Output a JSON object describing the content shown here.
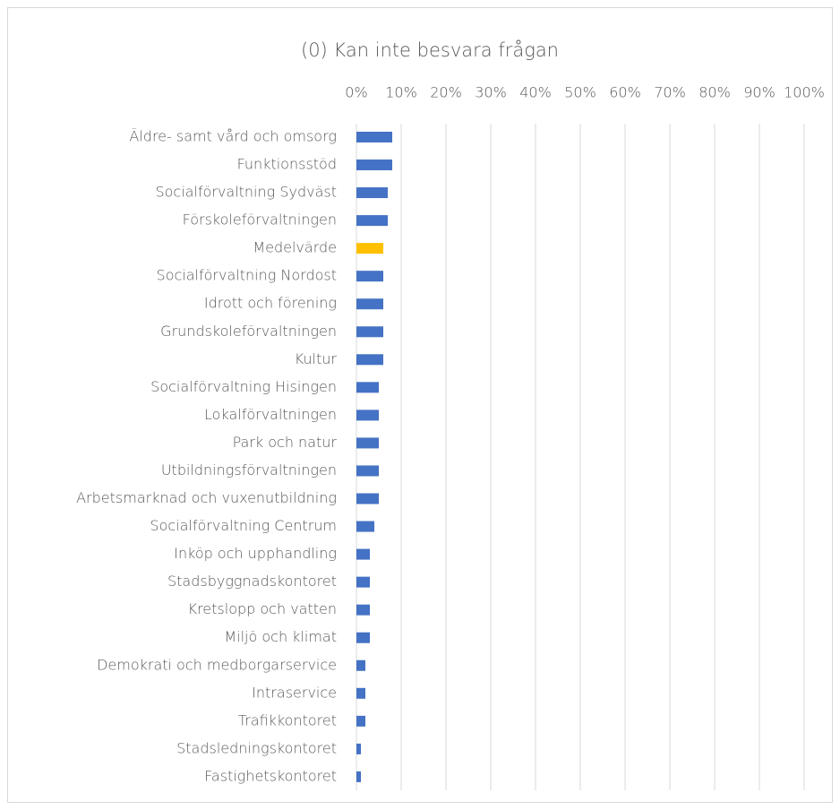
{
  "chart_data": {
    "type": "barh",
    "title": "(0) Kan inte besvara frågan",
    "categories": [
      "Äldre- samt vård och omsorg",
      "Funktionsstöd",
      "Socialförvaltning Sydväst",
      "Förskoleförvaltningen",
      "Medelvärde",
      "Socialförvaltning Nordost",
      "Idrott och förening",
      "Grundskoleförvaltningen",
      "Kultur",
      "Socialförvaltning Hisingen",
      "Lokalförvaltningen",
      "Park och natur",
      "Utbildningsförvaltningen",
      "Arbetsmarknad och vuxenutbildning",
      "Socialförvaltning Centrum",
      "Inköp och upphandling",
      "Stadsbyggnadskontoret",
      "Kretslopp och vatten",
      "Miljö och klimat",
      "Demokrati och medborgarservice",
      "Intraservice",
      "Trafikkontoret",
      "Stadsledningskontoret",
      "Fastighetskontoret"
    ],
    "values": [
      8,
      8,
      7,
      7,
      6,
      6,
      6,
      6,
      6,
      5,
      5,
      5,
      5,
      5,
      4,
      3,
      3,
      3,
      3,
      2,
      2,
      2,
      1,
      1
    ],
    "colors": [
      "#4472c4",
      "#4472c4",
      "#4472c4",
      "#4472c4",
      "#ffc000",
      "#4472c4",
      "#4472c4",
      "#4472c4",
      "#4472c4",
      "#4472c4",
      "#4472c4",
      "#4472c4",
      "#4472c4",
      "#4472c4",
      "#4472c4",
      "#4472c4",
      "#4472c4",
      "#4472c4",
      "#4472c4",
      "#4472c4",
      "#4472c4",
      "#4472c4",
      "#4472c4",
      "#4472c4"
    ],
    "xlim": [
      0,
      100
    ],
    "xticks": [
      {
        "value": 0,
        "label": "0%"
      },
      {
        "value": 10,
        "label": "10%"
      },
      {
        "value": 20,
        "label": "20%"
      },
      {
        "value": 30,
        "label": "30%"
      },
      {
        "value": 40,
        "label": "40%"
      },
      {
        "value": 50,
        "label": "50%"
      },
      {
        "value": 60,
        "label": "60%"
      },
      {
        "value": 70,
        "label": "70%"
      },
      {
        "value": 80,
        "label": "80%"
      },
      {
        "value": 90,
        "label": "90%"
      },
      {
        "value": 100,
        "label": "100%"
      }
    ],
    "grid": true
  }
}
